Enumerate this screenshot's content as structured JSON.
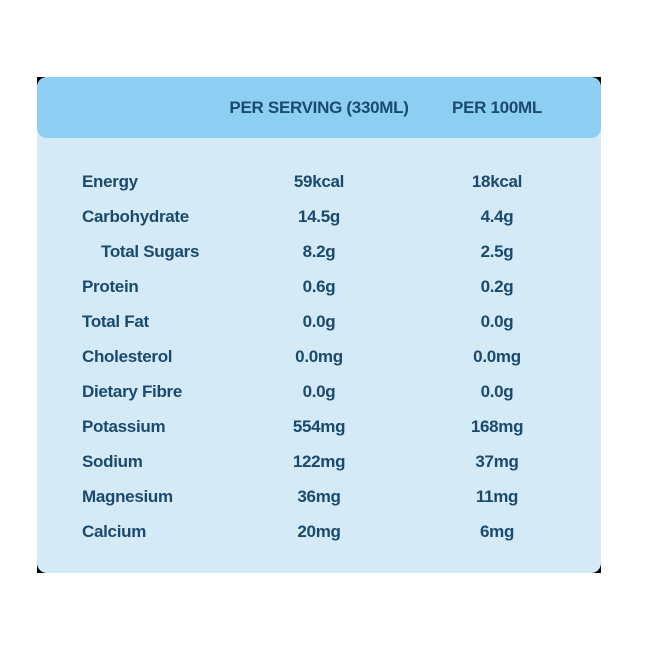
{
  "table": {
    "headers": {
      "label": "",
      "per_serving": "PER SERVING (330ML)",
      "per_100ml": "PER 100ML"
    },
    "rows": [
      {
        "name": "Energy",
        "per_serving": "59kcal",
        "per_100ml": "18kcal"
      },
      {
        "name": "Carbohydrate",
        "per_serving": "14.5g",
        "per_100ml": "4.4g"
      },
      {
        "name": "Total Sugars",
        "per_serving": "8.2g",
        "per_100ml": "2.5g"
      },
      {
        "name": "Protein",
        "per_serving": "0.6g",
        "per_100ml": "0.2g"
      },
      {
        "name": "Total Fat",
        "per_serving": "0.0g",
        "per_100ml": "0.0g"
      },
      {
        "name": "Cholesterol",
        "per_serving": "0.0mg",
        "per_100ml": "0.0mg"
      },
      {
        "name": "Dietary Fibre",
        "per_serving": "0.0g",
        "per_100ml": "0.0g"
      },
      {
        "name": "Potassium",
        "per_serving": "554mg",
        "per_100ml": "168mg"
      },
      {
        "name": "Sodium",
        "per_serving": "122mg",
        "per_100ml": "37mg"
      },
      {
        "name": "Magnesium",
        "per_serving": "36mg",
        "per_100ml": "11mg"
      },
      {
        "name": "Calcium",
        "per_serving": "20mg",
        "per_100ml": "6mg"
      }
    ]
  },
  "colors": {
    "header_background": "#8dcff3",
    "table_background": "#d4eaf7",
    "text": "#1a4a6e"
  }
}
